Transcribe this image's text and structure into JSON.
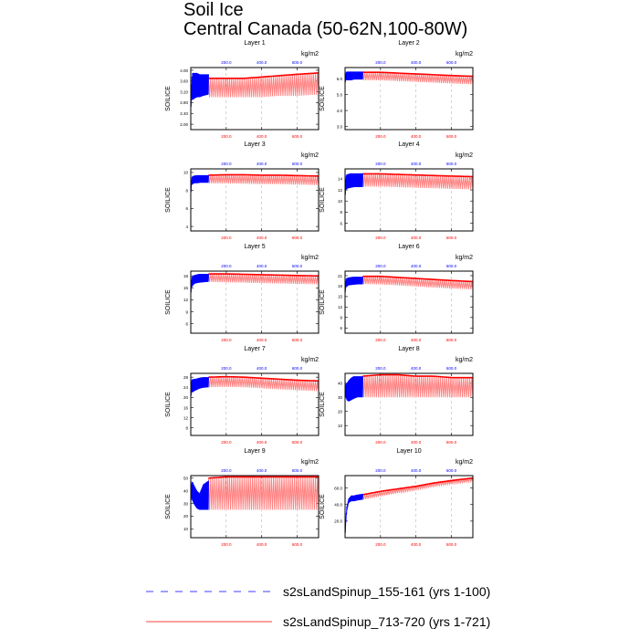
{
  "figure": {
    "title": "Soil Ice",
    "subtitle": "Central Canada (50-62N,100-80W)",
    "ylabel": "SOILICE",
    "units": "kg/m2"
  },
  "legend": [
    {
      "name": "s2sLandSpinup_155-161 (yrs 1-100)",
      "color": "#0000ff",
      "dash": "dashed"
    },
    {
      "name": "s2sLandSpinup_713-720 (yrs 1-721)",
      "color": "#ff0000",
      "dash": "solid"
    }
  ],
  "colors": {
    "run1": "#0000ff",
    "run2": "#ff0000",
    "run2_fill": "#ff8080"
  },
  "chart_data": [
    {
      "type": "line",
      "title": "Layer 1",
      "xlim": [
        0,
        721
      ],
      "bottom_ticks": [
        "200.0",
        "400.0",
        "600.0"
      ],
      "top_ticks": [
        "200.0",
        "400.0",
        "600.0"
      ],
      "ylim": [
        1.8,
        4.1
      ],
      "yticks": [
        "2.00",
        "2.40",
        "2.80",
        "3.20",
        "3.60",
        "4.00"
      ],
      "ytick_values": [
        2.0,
        2.4,
        2.8,
        3.2,
        3.6,
        4.0
      ],
      "series": [
        {
          "name": "s2sLandSpinup_155-161 (yrs 1-100)",
          "x": [
            0,
            2,
            5,
            10,
            20,
            35,
            50,
            70,
            100
          ],
          "min": [
            2.4,
            2.7,
            2.9,
            2.9,
            2.95,
            3.0,
            3.0,
            3.05,
            3.1
          ],
          "max": [
            3.0,
            3.3,
            3.7,
            3.9,
            3.9,
            3.9,
            3.85,
            3.85,
            3.85
          ]
        },
        {
          "name": "s2sLandSpinup_713-720 (yrs 1-721)",
          "x": [
            100,
            200,
            300,
            400,
            500,
            600,
            721
          ],
          "min": [
            3.0,
            3.0,
            3.0,
            3.0,
            3.05,
            3.05,
            3.1
          ],
          "max": [
            3.7,
            3.7,
            3.7,
            3.75,
            3.8,
            3.85,
            3.9
          ]
        }
      ]
    },
    {
      "type": "line",
      "title": "Layer 2",
      "xlim": [
        0,
        721
      ],
      "bottom_ticks": [
        "200.0",
        "400.0",
        "600.0"
      ],
      "top_ticks": [
        "200.0",
        "400.0",
        "600.0"
      ],
      "ylim": [
        2.8,
        6.7
      ],
      "yticks": [
        "3.0",
        "4.0",
        "5.0",
        "6.0"
      ],
      "ytick_values": [
        3.0,
        4.0,
        5.0,
        6.0
      ],
      "series": [
        {
          "name": "s2sLandSpinup_155-161 (yrs 1-100)",
          "x": [
            0,
            2,
            5,
            10,
            20,
            35,
            50,
            70,
            100
          ],
          "min": [
            5.6,
            5.8,
            5.9,
            5.9,
            5.9,
            5.9,
            5.95,
            5.95,
            5.95
          ],
          "max": [
            6.2,
            6.3,
            6.4,
            6.45,
            6.45,
            6.45,
            6.45,
            6.45,
            6.45
          ]
        },
        {
          "name": "s2sLandSpinup_713-720 (yrs 1-721)",
          "x": [
            100,
            200,
            300,
            400,
            500,
            600,
            721
          ],
          "min": [
            5.9,
            5.9,
            5.85,
            5.8,
            5.75,
            5.7,
            5.65
          ],
          "max": [
            6.4,
            6.4,
            6.35,
            6.3,
            6.25,
            6.2,
            6.15
          ]
        }
      ]
    },
    {
      "type": "line",
      "title": "Layer 3",
      "xlim": [
        0,
        721
      ],
      "bottom_ticks": [
        "200.0",
        "400.0",
        "600.0"
      ],
      "top_ticks": [
        "200.0",
        "400.0",
        "600.0"
      ],
      "ylim": [
        3.5,
        10.4
      ],
      "yticks": [
        "4",
        "6",
        "8",
        "10"
      ],
      "ytick_values": [
        4,
        6,
        8,
        10
      ],
      "series": [
        {
          "name": "s2sLandSpinup_155-161 (yrs 1-100)",
          "x": [
            0,
            2,
            5,
            10,
            20,
            35,
            50,
            70,
            100
          ],
          "min": [
            7.0,
            8.0,
            8.6,
            8.7,
            8.8,
            8.8,
            8.85,
            8.85,
            8.85
          ],
          "max": [
            8.0,
            9.0,
            9.4,
            9.6,
            9.65,
            9.7,
            9.7,
            9.7,
            9.7
          ]
        },
        {
          "name": "s2sLandSpinup_713-720 (yrs 1-721)",
          "x": [
            100,
            200,
            300,
            400,
            500,
            600,
            721
          ],
          "min": [
            8.8,
            8.8,
            8.75,
            8.7,
            8.7,
            8.65,
            8.6
          ],
          "max": [
            9.7,
            9.75,
            9.75,
            9.7,
            9.7,
            9.65,
            9.6
          ]
        }
      ]
    },
    {
      "type": "line",
      "title": "Layer 4",
      "xlim": [
        0,
        721
      ],
      "bottom_ticks": [
        "200.0",
        "400.0",
        "600.0"
      ],
      "top_ticks": [
        "200.0",
        "400.0",
        "600.0"
      ],
      "ylim": [
        4.6,
        15.8
      ],
      "yticks": [
        "6",
        "8",
        "10",
        "12",
        "14"
      ],
      "ytick_values": [
        6,
        8,
        10,
        12,
        14
      ],
      "series": [
        {
          "name": "s2sLandSpinup_155-161 (yrs 1-100)",
          "x": [
            0,
            2,
            5,
            10,
            20,
            35,
            50,
            70,
            100
          ],
          "min": [
            10.5,
            11.2,
            12.0,
            12.2,
            12.3,
            12.4,
            12.5,
            12.5,
            12.5
          ],
          "max": [
            12.5,
            13.5,
            14.5,
            14.8,
            14.9,
            15.0,
            15.0,
            15.0,
            15.0
          ]
        },
        {
          "name": "s2sLandSpinup_713-720 (yrs 1-721)",
          "x": [
            100,
            200,
            300,
            400,
            500,
            600,
            721
          ],
          "min": [
            12.6,
            12.6,
            12.5,
            12.4,
            12.3,
            12.2,
            12.1
          ],
          "max": [
            14.9,
            14.9,
            14.8,
            14.7,
            14.6,
            14.5,
            14.4
          ]
        }
      ]
    },
    {
      "type": "line",
      "title": "Layer 5",
      "xlim": [
        0,
        721
      ],
      "bottom_ticks": [
        "200.0",
        "400.0",
        "600.0"
      ],
      "top_ticks": [
        "200.0",
        "400.0",
        "600.0"
      ],
      "ylim": [
        3.6,
        19.2
      ],
      "yticks": [
        "6",
        "9",
        "12",
        "15",
        "18"
      ],
      "ytick_values": [
        6,
        9,
        12,
        15,
        18
      ],
      "series": [
        {
          "name": "s2sLandSpinup_155-161 (yrs 1-100)",
          "x": [
            0,
            2,
            5,
            10,
            20,
            35,
            50,
            70,
            100
          ],
          "min": [
            13.0,
            14.0,
            15.0,
            15.5,
            16.0,
            16.2,
            16.3,
            16.4,
            16.5
          ],
          "max": [
            15.0,
            16.5,
            17.5,
            18.0,
            18.2,
            18.4,
            18.5,
            18.5,
            18.5
          ]
        },
        {
          "name": "s2sLandSpinup_713-720 (yrs 1-721)",
          "x": [
            100,
            200,
            300,
            400,
            500,
            600,
            721
          ],
          "min": [
            16.5,
            16.4,
            16.3,
            16.2,
            16.1,
            16.0,
            15.9
          ],
          "max": [
            18.5,
            18.5,
            18.4,
            18.3,
            18.2,
            18.1,
            18.0
          ]
        }
      ]
    },
    {
      "type": "line",
      "title": "Layer 6",
      "xlim": [
        0,
        721
      ],
      "bottom_ticks": [
        "200.0",
        "400.0",
        "600.0"
      ],
      "top_ticks": [
        "200.0",
        "400.0",
        "600.0"
      ],
      "ylim": [
        4.5,
        22.3
      ],
      "yticks": [
        "6",
        "9",
        "12",
        "15",
        "18",
        "21"
      ],
      "ytick_values": [
        6,
        9,
        12,
        15,
        18,
        21
      ],
      "series": [
        {
          "name": "s2sLandSpinup_155-161 (yrs 1-100)",
          "x": [
            0,
            2,
            5,
            10,
            20,
            35,
            50,
            70,
            100
          ],
          "min": [
            15.5,
            16.5,
            17.5,
            18.0,
            18.2,
            18.3,
            18.4,
            18.5,
            18.5
          ],
          "max": [
            18.0,
            19.0,
            20.0,
            20.3,
            20.5,
            20.6,
            20.7,
            20.7,
            20.7
          ]
        },
        {
          "name": "s2sLandSpinup_713-720 (yrs 1-721)",
          "x": [
            100,
            200,
            300,
            400,
            500,
            600,
            721
          ],
          "min": [
            18.6,
            18.5,
            18.2,
            17.9,
            17.6,
            17.3,
            17.1
          ],
          "max": [
            20.8,
            20.8,
            20.5,
            20.2,
            19.9,
            19.6,
            19.3
          ]
        }
      ]
    },
    {
      "type": "line",
      "title": "Layer 7",
      "xlim": [
        0,
        721
      ],
      "bottom_ticks": [
        "200.0",
        "400.0",
        "600.0"
      ],
      "top_ticks": [
        "200.0",
        "400.0",
        "600.0"
      ],
      "ylim": [
        5.0,
        29.5
      ],
      "yticks": [
        "8",
        "12",
        "16",
        "20",
        "24",
        "28"
      ],
      "ytick_values": [
        8,
        12,
        16,
        20,
        24,
        28
      ],
      "series": [
        {
          "name": "s2sLandSpinup_155-161 (yrs 1-100)",
          "x": [
            0,
            2,
            5,
            10,
            20,
            35,
            50,
            70,
            100
          ],
          "min": [
            19.0,
            21.0,
            22.0,
            22.0,
            22.5,
            23.0,
            23.5,
            23.8,
            24.0
          ],
          "max": [
            24.0,
            26.0,
            27.0,
            27.2,
            27.3,
            27.5,
            27.8,
            28.0,
            28.0
          ]
        },
        {
          "name": "s2sLandSpinup_713-720 (yrs 1-721)",
          "x": [
            100,
            200,
            300,
            400,
            500,
            600,
            721
          ],
          "min": [
            24.0,
            24.2,
            24.0,
            23.6,
            23.2,
            22.8,
            22.5
          ],
          "max": [
            28.0,
            28.2,
            28.0,
            27.6,
            27.2,
            26.8,
            26.5
          ]
        }
      ]
    },
    {
      "type": "line",
      "title": "Layer 8",
      "xlim": [
        0,
        721
      ],
      "bottom_ticks": [
        "200.0",
        "400.0",
        "600.0"
      ],
      "top_ticks": [
        "200.0",
        "400.0",
        "600.0"
      ],
      "ylim": [
        3.0,
        47.0
      ],
      "yticks": [
        "10",
        "20",
        "30",
        "40"
      ],
      "ytick_values": [
        10,
        20,
        30,
        40
      ],
      "series": [
        {
          "name": "s2sLandSpinup_155-161 (yrs 1-100)",
          "x": [
            0,
            2,
            5,
            10,
            20,
            35,
            50,
            70,
            100
          ],
          "min": [
            28.0,
            30.0,
            30.0,
            28.0,
            27.0,
            28.0,
            29.0,
            30.0,
            30.0
          ],
          "max": [
            35.0,
            38.0,
            40.0,
            40.0,
            42.0,
            44.0,
            45.0,
            45.0,
            45.0
          ]
        },
        {
          "name": "s2sLandSpinup_713-720 (yrs 1-721)",
          "x": [
            100,
            200,
            300,
            400,
            500,
            600,
            721
          ],
          "min": [
            30.0,
            30.0,
            30.0,
            30.0,
            30.0,
            30.0,
            30.0
          ],
          "max": [
            45.0,
            46.0,
            46.0,
            45.0,
            45.0,
            44.0,
            44.0
          ]
        }
      ]
    },
    {
      "type": "line",
      "title": "Layer 9",
      "xlim": [
        0,
        721
      ],
      "bottom_ticks": [
        "200.0",
        "400.0",
        "600.0"
      ],
      "top_ticks": [
        "200.0",
        "400.0",
        "600.0"
      ],
      "ylim": [
        3.0,
        52.0
      ],
      "yticks": [
        "10",
        "20",
        "30",
        "40",
        "50"
      ],
      "ytick_values": [
        10,
        20,
        30,
        40,
        50
      ],
      "series": [
        {
          "name": "s2sLandSpinup_155-161 (yrs 1-100)",
          "x": [
            0,
            2,
            5,
            10,
            20,
            35,
            50,
            70,
            100
          ],
          "min": [
            30.0,
            33.0,
            34.0,
            32.0,
            29.0,
            26.0,
            25.0,
            25.0,
            25.0
          ],
          "max": [
            38.0,
            44.0,
            47.0,
            47.0,
            44.0,
            40.0,
            38.0,
            45.0,
            48.0
          ]
        },
        {
          "name": "s2sLandSpinup_713-720 (yrs 1-721)",
          "x": [
            100,
            200,
            300,
            400,
            500,
            600,
            721
          ],
          "min": [
            25.0,
            25.0,
            25.0,
            25.0,
            25.0,
            25.0,
            25.0
          ],
          "max": [
            50.0,
            51.0,
            51.0,
            51.0,
            51.0,
            51.0,
            51.0
          ]
        }
      ]
    },
    {
      "type": "line",
      "title": "Layer 10",
      "xlim": [
        0,
        721
      ],
      "bottom_ticks": [
        "200.0",
        "400.0",
        "600.0"
      ],
      "top_ticks": [
        "200.0",
        "400.0",
        "600.0"
      ],
      "ylim": [
        0.0,
        75.0
      ],
      "yticks": [
        "20.0",
        "40.0",
        "60.0"
      ],
      "ytick_values": [
        20,
        40,
        60
      ],
      "series": [
        {
          "name": "s2sLandSpinup_155-161 (yrs 1-100)",
          "x": [
            0,
            2,
            5,
            10,
            20,
            35,
            50,
            70,
            100
          ],
          "min": [
            2.0,
            8.0,
            20.0,
            32.0,
            42.0,
            44.0,
            44.0,
            45.0,
            46.0
          ],
          "max": [
            5.0,
            12.0,
            26.0,
            38.0,
            47.0,
            51.0,
            51.0,
            52.0,
            53.0
          ]
        },
        {
          "name": "s2sLandSpinup_713-720 (yrs 1-721)",
          "x": [
            100,
            200,
            300,
            400,
            500,
            600,
            721
          ],
          "min": [
            46.0,
            50.0,
            54.0,
            58.0,
            62.0,
            65.0,
            68.0
          ],
          "max": [
            52.0,
            56.0,
            59.0,
            62.0,
            66.0,
            69.0,
            72.0
          ]
        }
      ]
    }
  ]
}
